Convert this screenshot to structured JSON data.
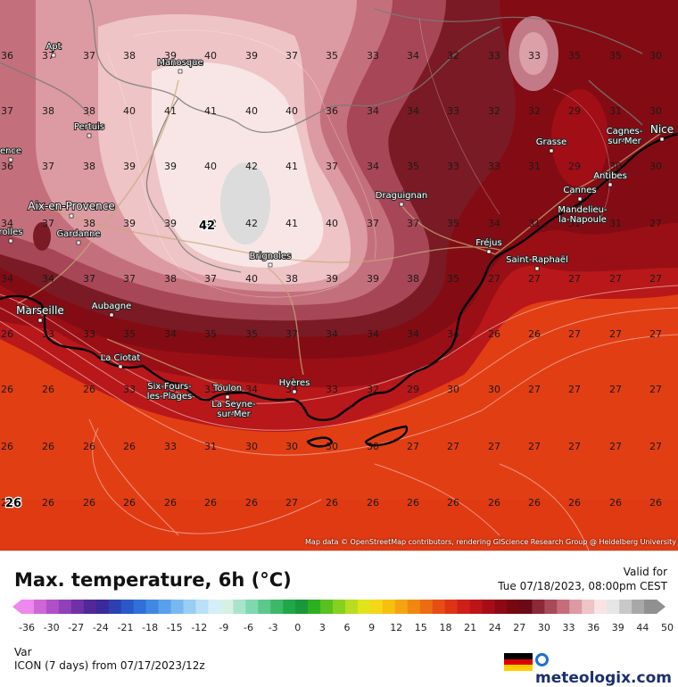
{
  "map": {
    "cities": [
      {
        "name": "Apt"
      },
      {
        "name": "Manosque"
      },
      {
        "name": "Pertuis"
      },
      {
        "name": "Aix-en-Provence"
      },
      {
        "name": "Gardanne"
      },
      {
        "name": "rolles"
      },
      {
        "name": "Marseille"
      },
      {
        "name": "Aubagne"
      },
      {
        "name": "La Ciotat"
      },
      {
        "name": "Six-Fours-les-Plages"
      },
      {
        "name": "Toulon"
      },
      {
        "name": "La Seyne-sur-Mer"
      },
      {
        "name": "Hyères"
      },
      {
        "name": "Brignoles"
      },
      {
        "name": "Draguignan"
      },
      {
        "name": "Fréjus"
      },
      {
        "name": "Saint-Raphaël"
      },
      {
        "name": "Grasse"
      },
      {
        "name": "Cannes"
      },
      {
        "name": "Mandelieu-la-Napoule"
      },
      {
        "name": "Antibes"
      },
      {
        "name": "Cagnes-sur-Mer"
      },
      {
        "name": "Nice"
      },
      {
        "name": "ence"
      }
    ],
    "grid_values": [
      [
        36,
        37,
        37,
        38,
        39,
        40,
        39,
        37,
        35,
        33,
        34,
        32,
        33,
        33,
        35,
        35,
        30
      ],
      [
        37,
        38,
        38,
        40,
        41,
        41,
        40,
        40,
        36,
        34,
        34,
        33,
        32,
        32,
        29,
        31,
        30
      ],
      [
        36,
        37,
        38,
        39,
        39,
        40,
        42,
        41,
        37,
        34,
        35,
        33,
        33,
        31,
        29,
        30,
        30
      ],
      [
        34,
        37,
        38,
        39,
        39,
        42,
        42,
        41,
        40,
        37,
        37,
        35,
        34,
        31,
        31,
        31,
        27
      ],
      [
        34,
        34,
        37,
        37,
        38,
        37,
        40,
        38,
        39,
        39,
        38,
        35,
        27,
        27,
        27,
        27,
        27
      ],
      [
        26,
        33,
        33,
        35,
        34,
        35,
        35,
        37,
        34,
        34,
        34,
        34,
        26,
        26,
        27,
        27,
        27
      ],
      [
        26,
        26,
        26,
        33,
        35,
        33,
        34,
        34,
        33,
        32,
        29,
        30,
        30,
        27,
        27,
        27,
        27
      ],
      [
        26,
        26,
        26,
        26,
        33,
        31,
        30,
        30,
        30,
        30,
        27,
        27,
        27,
        27,
        27,
        27,
        27
      ],
      [
        26,
        26,
        26,
        26,
        26,
        26,
        26,
        27,
        26,
        26,
        26,
        26,
        26,
        26,
        26,
        26,
        26
      ]
    ],
    "extremes": {
      "max": "42",
      "min": "26"
    },
    "attribution": "Map data © OpenStreetMap contributors, rendering GIScience Research Group @ Heidelberg University"
  },
  "header": {
    "title": "Max. temperature, 6h (°C)",
    "valid_label": "Valid for",
    "valid_value": "Tue 07/18/2023, 08:00pm CEST"
  },
  "legend": {
    "ticks": [
      "-36",
      "-30",
      "-27",
      "-24",
      "-21",
      "-18",
      "-15",
      "-12",
      "-9",
      "-6",
      "-3",
      "0",
      "3",
      "6",
      "9",
      "12",
      "15",
      "18",
      "21",
      "24",
      "27",
      "30",
      "33",
      "36",
      "39",
      "44",
      "50"
    ],
    "colors": [
      "#ee88ee",
      "#d066d6",
      "#b050c8",
      "#9040b8",
      "#7030a8",
      "#502898",
      "#3a2a9c",
      "#2c40b0",
      "#2a58c8",
      "#3070d8",
      "#4088e2",
      "#58a0ea",
      "#78b8f0",
      "#98cef4",
      "#b8e0f6",
      "#d6eef8",
      "#d8f0e4",
      "#a8e4cc",
      "#80d8b0",
      "#5cc88c",
      "#3cb868",
      "#20a848",
      "#18983a",
      "#2cb020",
      "#58c020",
      "#88d020",
      "#b8dc20",
      "#e0e418",
      "#f4d818",
      "#f6c010",
      "#f4a410",
      "#f08810",
      "#ec6c12",
      "#e64e14",
      "#dc3414",
      "#ce2016",
      "#be1418",
      "#a60e16",
      "#8c0a14",
      "#760812",
      "#6a0a16",
      "#8c2838",
      "#a84a58",
      "#c46e7a",
      "#dc9aa2",
      "#eec4c6",
      "#f8e4e4",
      "#e6e6e6",
      "#c8c8c8",
      "#a8a8a8",
      "#909090"
    ]
  },
  "footer": {
    "var_label": "Var",
    "model": "ICON (7 days)  from  07/17/2023/12z",
    "brand": "meteologix.com"
  },
  "colors": {
    "sea": "#e03c16",
    "land_hot": "#8a0d14",
    "land_peak": "#f6e4e4",
    "coast": "#000000"
  }
}
